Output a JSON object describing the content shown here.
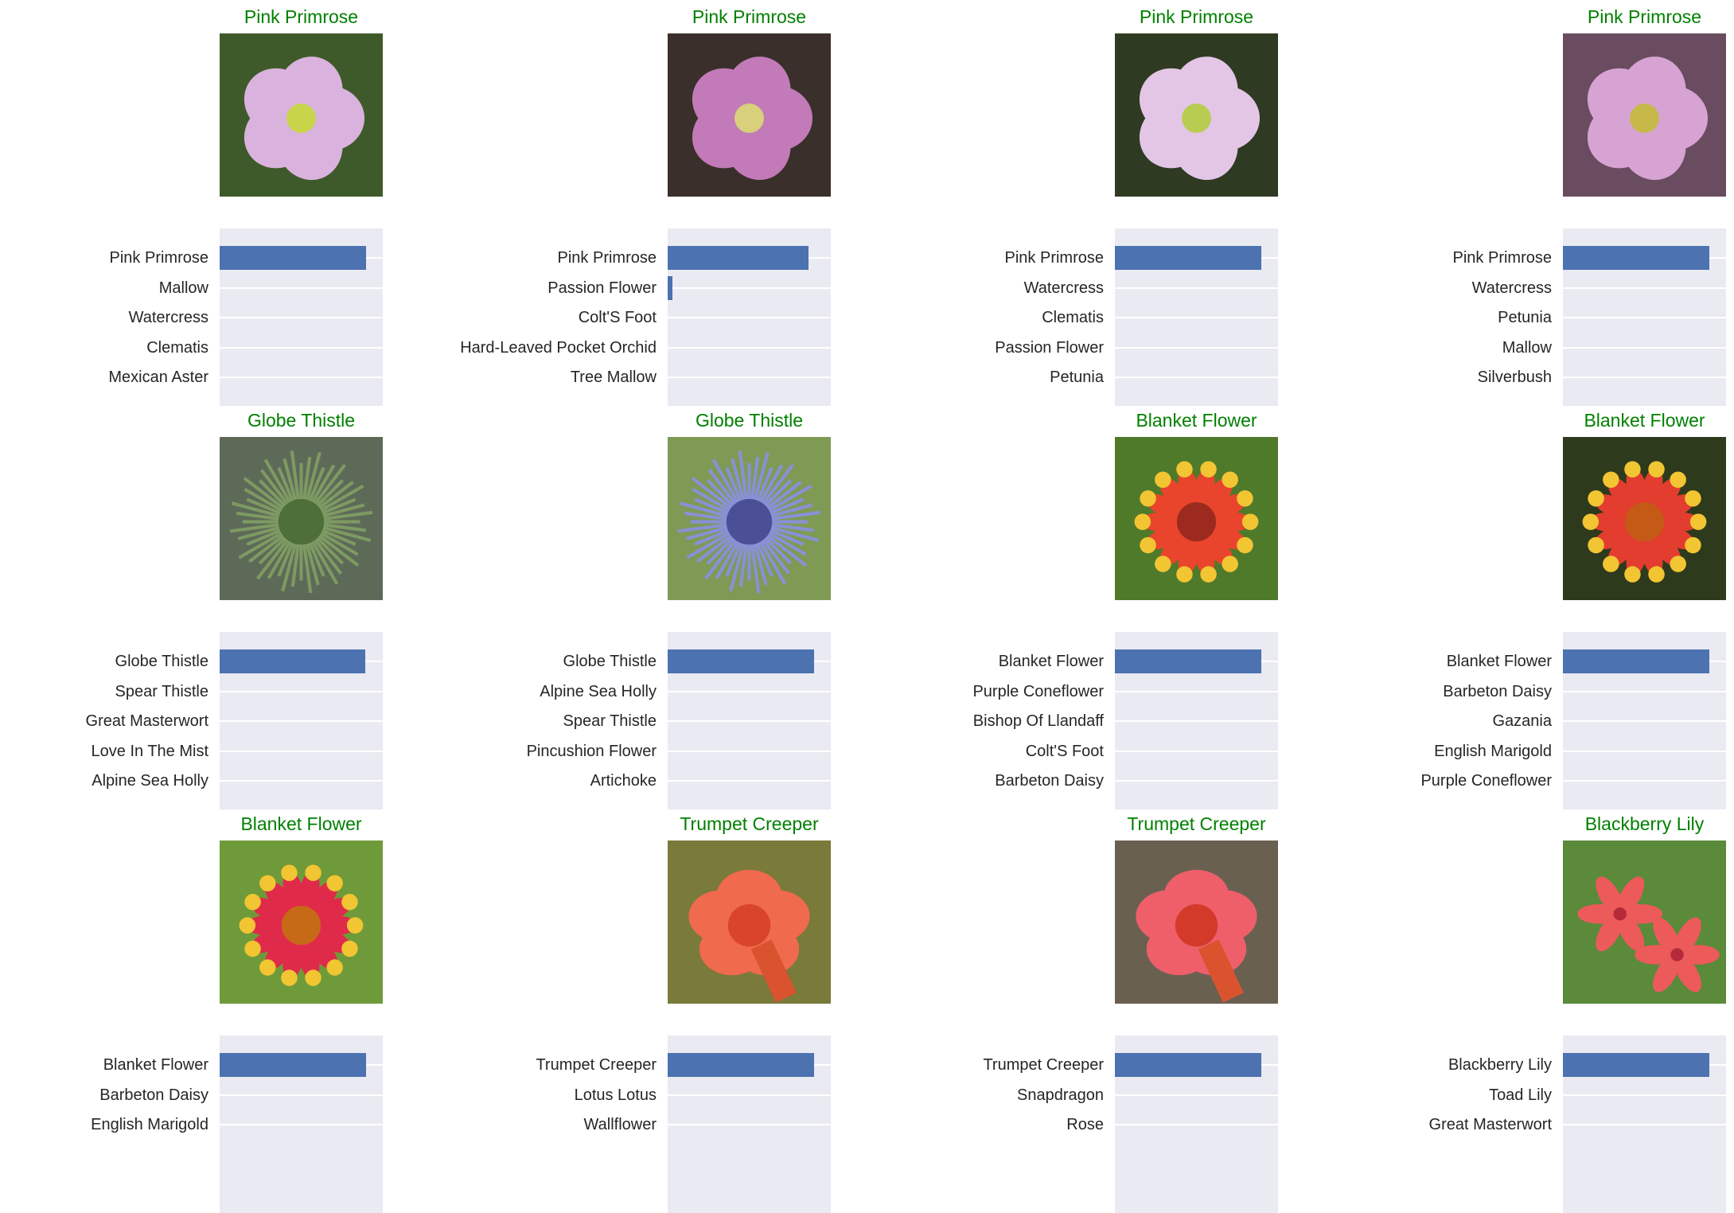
{
  "chart_data": [
    {
      "type": "bar",
      "title": "Pink Primrose",
      "categories": [
        "Pink Primrose",
        "Mallow",
        "Watercress",
        "Clematis",
        "Mexican Aster"
      ],
      "values": [
        0.99,
        0.0,
        0.0,
        0.0,
        0.0
      ],
      "xlim": [
        0,
        1.1
      ],
      "grid": true
    },
    {
      "type": "bar",
      "title": "Pink Primrose",
      "categories": [
        "Pink Primrose",
        "Passion Flower",
        "Colt'S Foot",
        "Hard-Leaved Pocket Orchid",
        "Tree Mallow"
      ],
      "values": [
        0.95,
        0.03,
        0.0,
        0.0,
        0.0
      ],
      "xlim": [
        0,
        1.1
      ],
      "grid": true
    },
    {
      "type": "bar",
      "title": "Pink Primrose",
      "categories": [
        "Pink Primrose",
        "Watercress",
        "Clematis",
        "Passion Flower",
        "Petunia"
      ],
      "values": [
        0.99,
        0.0,
        0.0,
        0.0,
        0.0
      ],
      "xlim": [
        0,
        1.1
      ],
      "grid": true
    },
    {
      "type": "bar",
      "title": "Pink Primrose",
      "categories": [
        "Pink Primrose",
        "Watercress",
        "Petunia",
        "Mallow",
        "Silverbush"
      ],
      "values": [
        0.99,
        0.0,
        0.0,
        0.0,
        0.0
      ],
      "xlim": [
        0,
        1.1
      ],
      "grid": true
    },
    {
      "type": "bar",
      "title": "Globe Thistle",
      "categories": [
        "Globe Thistle",
        "Spear Thistle",
        "Great Masterwort",
        "Love In The Mist",
        "Alpine Sea Holly"
      ],
      "values": [
        0.98,
        0.0,
        0.0,
        0.0,
        0.0
      ],
      "xlim": [
        0,
        1.1
      ],
      "grid": true
    },
    {
      "type": "bar",
      "title": "Globe Thistle",
      "categories": [
        "Globe Thistle",
        "Alpine Sea Holly",
        "Spear Thistle",
        "Pincushion Flower",
        "Artichoke"
      ],
      "values": [
        0.99,
        0.0,
        0.0,
        0.0,
        0.0
      ],
      "xlim": [
        0,
        1.1
      ],
      "grid": true
    },
    {
      "type": "bar",
      "title": "Blanket Flower",
      "categories": [
        "Blanket Flower",
        "Purple Coneflower",
        "Bishop Of Llandaff",
        "Colt'S Foot",
        "Barbeton Daisy"
      ],
      "values": [
        0.99,
        0.0,
        0.0,
        0.0,
        0.0
      ],
      "xlim": [
        0,
        1.1
      ],
      "grid": true
    },
    {
      "type": "bar",
      "title": "Blanket Flower",
      "categories": [
        "Blanket Flower",
        "Barbeton Daisy",
        "Gazania",
        "English Marigold",
        "Purple Coneflower"
      ],
      "values": [
        0.99,
        0.0,
        0.0,
        0.0,
        0.0
      ],
      "xlim": [
        0,
        1.1
      ],
      "grid": true
    },
    {
      "type": "bar",
      "title": "Blanket Flower",
      "categories": [
        "Blanket Flower",
        "Barbeton Daisy",
        "English Marigold"
      ],
      "values": [
        0.99,
        0.0,
        0.0
      ],
      "xlim": [
        0,
        1.1
      ],
      "grid": true
    },
    {
      "type": "bar",
      "title": "Trumpet Creeper",
      "categories": [
        "Trumpet Creeper",
        "Lotus Lotus",
        "Wallflower"
      ],
      "values": [
        0.99,
        0.0,
        0.0
      ],
      "xlim": [
        0,
        1.1
      ],
      "grid": true
    },
    {
      "type": "bar",
      "title": "Trumpet Creeper",
      "categories": [
        "Trumpet Creeper",
        "Snapdragon",
        "Rose"
      ],
      "values": [
        0.99,
        0.0,
        0.0
      ],
      "xlim": [
        0,
        1.1
      ],
      "grid": true
    },
    {
      "type": "bar",
      "title": "Blackberry Lily",
      "categories": [
        "Blackberry Lily",
        "Toad Lily",
        "Great Masterwort"
      ],
      "values": [
        0.99,
        0.0,
        0.0
      ],
      "xlim": [
        0,
        1.1
      ],
      "grid": true
    }
  ],
  "images": [
    {
      "icon": "pink-primrose-photo",
      "petal": "#d9b3dd",
      "center": "#c8d44a",
      "bg": "#3f5a2a"
    },
    {
      "icon": "pink-primrose-photo",
      "petal": "#c27ab8",
      "center": "#d8d07a",
      "bg": "#3a2f2a"
    },
    {
      "icon": "pink-primrose-photo",
      "petal": "#e3c6e6",
      "center": "#b9cc52",
      "bg": "#2f3a22"
    },
    {
      "icon": "pink-primrose-photo",
      "petal": "#d7a3d3",
      "center": "#c6b94a",
      "bg": "#6a4c60"
    },
    {
      "icon": "globe-thistle-photo",
      "petal": "#7d9a62",
      "center": "#4e6e3a",
      "bg": "#5e6a58"
    },
    {
      "icon": "globe-thistle-photo",
      "petal": "#8a90d6",
      "center": "#4b4f96",
      "bg": "#7f9a55"
    },
    {
      "icon": "blanket-flower-photo",
      "petal": "#e8452c",
      "center": "#9c2a1e",
      "bg": "#4f7a2a"
    },
    {
      "icon": "blanket-flower-photo",
      "petal": "#e23d2e",
      "center": "#c55a16",
      "bg": "#2e3a1c"
    },
    {
      "icon": "blanket-flower-photo",
      "petal": "#e02a4a",
      "center": "#c76a18",
      "bg": "#6f9a3a"
    },
    {
      "icon": "trumpet-creeper-photo",
      "petal": "#f06a4e",
      "center": "#d8442c",
      "bg": "#7a7a3a"
    },
    {
      "icon": "trumpet-creeper-photo",
      "petal": "#ee5f6a",
      "center": "#d43a2a",
      "bg": "#6a6050"
    },
    {
      "icon": "blackberry-lily-photo",
      "petal": "#ec5a5a",
      "center": "#b42a3a",
      "bg": "#5a8a3a"
    }
  ],
  "colors": {
    "title": "#008000",
    "bar": "#4c72b0",
    "axes_bg": "#eaeaf2",
    "label": "#262626"
  }
}
